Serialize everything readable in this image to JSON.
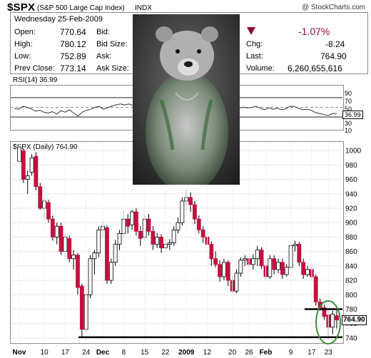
{
  "header": {
    "symbol": "$SPX",
    "name": "(S&P 500 Large Cap Index)",
    "exchange": "INDX",
    "source": "@ StockCharts.com"
  },
  "quote": {
    "date": "Wednesday  25-Feb-2009",
    "open_label": "Open:",
    "open": "770.64",
    "high_label": "High:",
    "high": "780.12",
    "low_label": "Low:",
    "low": "752.89",
    "prevclose_label": "Prev Close:",
    "prevclose": "773.14",
    "bid_label": "Bid:",
    "bidsize_label": "Bid Size:",
    "ask_label": "Ask:",
    "asksize_label": "Ask Size:",
    "change_pct": "-1.07%",
    "chg_label": "Chg:",
    "chg": "-8.24",
    "last_label": "Last:",
    "last": "764.90",
    "volume_label": "Volume:",
    "volume": "6,260,655,616"
  },
  "rsi": {
    "label": "RSI(14) 36.99",
    "current": "36.99",
    "axis": [
      "90",
      "70",
      "50",
      "30",
      "10"
    ]
  },
  "price_panel": {
    "label": "$SPX (Daily) 764.90",
    "current_tag": "764.90"
  },
  "colors": {
    "up": "#ffffff",
    "down": "#c41040",
    "support": "#000000",
    "circle": "#3f8b3f",
    "rsi_line": "#333333"
  },
  "icons": {
    "trend": "down-triangle-icon",
    "photo": "bear-photo"
  },
  "chart_data": {
    "type": "candlestick",
    "title": "$SPX (Daily) 764.90",
    "y_ticks": [
      740,
      760,
      780,
      800,
      820,
      840,
      860,
      880,
      900,
      920,
      940,
      960,
      980,
      1000
    ],
    "ylim": [
      735,
      1012
    ],
    "x_ticks": [
      "Nov",
      "10",
      "17",
      "24",
      "Dec",
      "8",
      "15",
      "22",
      "2009",
      "12",
      "20",
      "26",
      "Feb",
      "9",
      "17",
      "23"
    ],
    "candles": [
      {
        "o": 985,
        "c": 1005,
        "l": 980,
        "h": 1008
      },
      {
        "o": 1000,
        "c": 960,
        "l": 955,
        "h": 1003
      },
      {
        "o": 960,
        "c": 965,
        "l": 940,
        "h": 972
      },
      {
        "o": 970,
        "c": 990,
        "l": 965,
        "h": 995
      },
      {
        "o": 992,
        "c": 950,
        "l": 945,
        "h": 998
      },
      {
        "o": 950,
        "c": 920,
        "l": 918,
        "h": 955
      },
      {
        "o": 920,
        "c": 930,
        "l": 905,
        "h": 935
      },
      {
        "o": 928,
        "c": 905,
        "l": 900,
        "h": 932
      },
      {
        "o": 905,
        "c": 880,
        "l": 875,
        "h": 910
      },
      {
        "o": 880,
        "c": 895,
        "l": 870,
        "h": 900
      },
      {
        "o": 895,
        "c": 860,
        "l": 855,
        "h": 900
      },
      {
        "o": 860,
        "c": 880,
        "l": 850,
        "h": 885
      },
      {
        "o": 878,
        "c": 850,
        "l": 845,
        "h": 882
      },
      {
        "o": 850,
        "c": 855,
        "l": 835,
        "h": 862
      },
      {
        "o": 855,
        "c": 810,
        "l": 800,
        "h": 858
      },
      {
        "o": 812,
        "c": 752,
        "l": 741,
        "h": 815
      },
      {
        "o": 752,
        "c": 800,
        "l": 748,
        "h": 803
      },
      {
        "o": 800,
        "c": 850,
        "l": 795,
        "h": 855
      },
      {
        "o": 850,
        "c": 858,
        "l": 828,
        "h": 862
      },
      {
        "o": 858,
        "c": 890,
        "l": 852,
        "h": 895
      },
      {
        "o": 890,
        "c": 895,
        "l": 880,
        "h": 902
      },
      {
        "o": 893,
        "c": 820,
        "l": 815,
        "h": 896
      },
      {
        "o": 820,
        "c": 845,
        "l": 815,
        "h": 850
      },
      {
        "o": 845,
        "c": 870,
        "l": 840,
        "h": 876
      },
      {
        "o": 870,
        "c": 885,
        "l": 862,
        "h": 890
      },
      {
        "o": 885,
        "c": 905,
        "l": 880,
        "h": 918
      },
      {
        "o": 905,
        "c": 895,
        "l": 885,
        "h": 912
      },
      {
        "o": 897,
        "c": 915,
        "l": 890,
        "h": 918
      },
      {
        "o": 915,
        "c": 888,
        "l": 882,
        "h": 920
      },
      {
        "o": 888,
        "c": 878,
        "l": 868,
        "h": 895
      },
      {
        "o": 880,
        "c": 905,
        "l": 875,
        "h": 910
      },
      {
        "o": 905,
        "c": 888,
        "l": 882,
        "h": 912
      },
      {
        "o": 888,
        "c": 870,
        "l": 862,
        "h": 895
      },
      {
        "o": 870,
        "c": 880,
        "l": 865,
        "h": 886
      },
      {
        "o": 880,
        "c": 865,
        "l": 858,
        "h": 884
      },
      {
        "o": 865,
        "c": 870,
        "l": 860,
        "h": 876
      },
      {
        "o": 870,
        "c": 872,
        "l": 862,
        "h": 877
      },
      {
        "o": 872,
        "c": 890,
        "l": 868,
        "h": 895
      },
      {
        "o": 890,
        "c": 900,
        "l": 885,
        "h": 907
      },
      {
        "o": 900,
        "c": 930,
        "l": 896,
        "h": 935
      },
      {
        "o": 930,
        "c": 935,
        "l": 918,
        "h": 945
      },
      {
        "o": 935,
        "c": 925,
        "l": 915,
        "h": 942
      },
      {
        "o": 925,
        "c": 905,
        "l": 898,
        "h": 930
      },
      {
        "o": 905,
        "c": 890,
        "l": 885,
        "h": 910
      },
      {
        "o": 890,
        "c": 880,
        "l": 872,
        "h": 895
      },
      {
        "o": 880,
        "c": 870,
        "l": 862,
        "h": 885
      },
      {
        "o": 870,
        "c": 850,
        "l": 840,
        "h": 874
      },
      {
        "o": 850,
        "c": 842,
        "l": 838,
        "h": 860
      },
      {
        "o": 842,
        "c": 825,
        "l": 818,
        "h": 848
      },
      {
        "o": 825,
        "c": 845,
        "l": 820,
        "h": 850
      },
      {
        "o": 845,
        "c": 820,
        "l": 812,
        "h": 848
      },
      {
        "o": 820,
        "c": 805,
        "l": 802,
        "h": 826
      },
      {
        "o": 805,
        "c": 830,
        "l": 802,
        "h": 835
      },
      {
        "o": 830,
        "c": 848,
        "l": 825,
        "h": 852
      },
      {
        "o": 848,
        "c": 850,
        "l": 840,
        "h": 855
      },
      {
        "o": 850,
        "c": 842,
        "l": 835,
        "h": 855
      },
      {
        "o": 842,
        "c": 850,
        "l": 835,
        "h": 856
      },
      {
        "o": 850,
        "c": 862,
        "l": 840,
        "h": 868
      },
      {
        "o": 862,
        "c": 840,
        "l": 836,
        "h": 866
      },
      {
        "o": 840,
        "c": 825,
        "l": 820,
        "h": 845
      },
      {
        "o": 825,
        "c": 850,
        "l": 822,
        "h": 855
      },
      {
        "o": 850,
        "c": 835,
        "l": 828,
        "h": 855
      },
      {
        "o": 835,
        "c": 845,
        "l": 830,
        "h": 850
      },
      {
        "o": 845,
        "c": 828,
        "l": 822,
        "h": 850
      },
      {
        "o": 828,
        "c": 838,
        "l": 825,
        "h": 842
      },
      {
        "o": 838,
        "c": 868,
        "l": 835,
        "h": 872
      },
      {
        "o": 868,
        "c": 870,
        "l": 860,
        "h": 875
      },
      {
        "o": 870,
        "c": 845,
        "l": 840,
        "h": 873
      },
      {
        "o": 845,
        "c": 828,
        "l": 822,
        "h": 850
      },
      {
        "o": 828,
        "c": 835,
        "l": 825,
        "h": 840
      },
      {
        "o": 835,
        "c": 825,
        "l": 820,
        "h": 840
      },
      {
        "o": 825,
        "c": 790,
        "l": 785,
        "h": 828
      },
      {
        "o": 790,
        "c": 782,
        "l": 778,
        "h": 795
      },
      {
        "o": 782,
        "c": 770,
        "l": 765,
        "h": 786
      },
      {
        "o": 772,
        "c": 755,
        "l": 742,
        "h": 778
      },
      {
        "o": 755,
        "c": 773,
        "l": 745,
        "h": 778
      },
      {
        "o": 771,
        "c": 765,
        "l": 753,
        "h": 780
      }
    ],
    "rsi_series": [
      48,
      46,
      52,
      50,
      47,
      42,
      44,
      40,
      38,
      41,
      36,
      43,
      40,
      45,
      38,
      32,
      40,
      44,
      46,
      50,
      52,
      46,
      49,
      53,
      55,
      57,
      55,
      57,
      54,
      52,
      56,
      54,
      52,
      53,
      51,
      52,
      52,
      54,
      56,
      58,
      59,
      57,
      55,
      53,
      51,
      50,
      47,
      46,
      44,
      47,
      44,
      42,
      46,
      49,
      50,
      49,
      50,
      52,
      48,
      45,
      49,
      46,
      48,
      45,
      47,
      52,
      52,
      48,
      45,
      46,
      44,
      39,
      37,
      35,
      33,
      37,
      36.99
    ],
    "support_level": 741,
    "resistance_level": 780
  }
}
